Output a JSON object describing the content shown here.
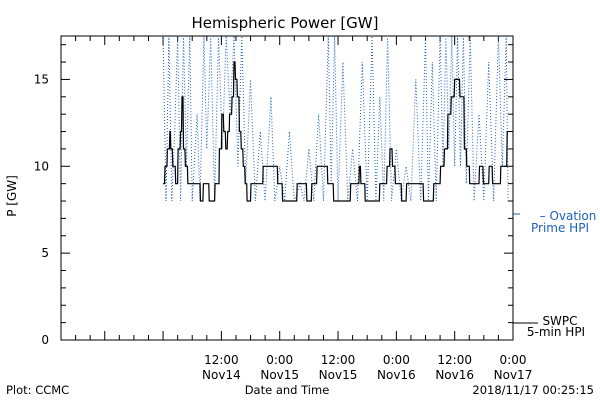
{
  "chart_data": {
    "type": "line",
    "title": "Hemispheric Power [GW]",
    "xlabel": "Date and Time",
    "ylabel": "P [GW]",
    "xlim_hours": [
      -21,
      72
    ],
    "ylim": [
      0,
      17.5
    ],
    "yticks": [
      0,
      5,
      10,
      15
    ],
    "xticks": [
      {
        "h": 12,
        "top": "12:00",
        "bottom": "Nov14"
      },
      {
        "h": 24,
        "top": "0:00",
        "bottom": "Nov15"
      },
      {
        "h": 36,
        "top": "12:00",
        "bottom": "Nov15"
      },
      {
        "h": 48,
        "top": "0:00",
        "bottom": "Nov16"
      },
      {
        "h": 60,
        "top": "12:00",
        "bottom": "Nov16"
      },
      {
        "h": 72,
        "top": "0:00",
        "bottom": "Nov17"
      }
    ],
    "series": [
      {
        "name": "SWPC 5-min HPI",
        "color": "#000000",
        "style": "solid",
        "points": [
          [
            0,
            9
          ],
          [
            0.3,
            9
          ],
          [
            0.4,
            10
          ],
          [
            0.8,
            10
          ],
          [
            0.9,
            11
          ],
          [
            1.3,
            11
          ],
          [
            1.4,
            12
          ],
          [
            1.5,
            12
          ],
          [
            1.6,
            11
          ],
          [
            1.9,
            11
          ],
          [
            2,
            10
          ],
          [
            2.5,
            10
          ],
          [
            2.6,
            9
          ],
          [
            3,
            9
          ],
          [
            3.1,
            11
          ],
          [
            3.5,
            11
          ],
          [
            3.6,
            12
          ],
          [
            3.8,
            12
          ],
          [
            3.9,
            14
          ],
          [
            4.1,
            14
          ],
          [
            4.2,
            11
          ],
          [
            4.5,
            11
          ],
          [
            4.6,
            10
          ],
          [
            5,
            10
          ],
          [
            5.1,
            9
          ],
          [
            7.6,
            9
          ],
          [
            7.7,
            8
          ],
          [
            8.2,
            8
          ],
          [
            8.3,
            9
          ],
          [
            9.4,
            9
          ],
          [
            9.5,
            8
          ],
          [
            10.6,
            8
          ],
          [
            10.7,
            9
          ],
          [
            11.5,
            9
          ],
          [
            11.6,
            11
          ],
          [
            12,
            11
          ],
          [
            12.1,
            13
          ],
          [
            12.4,
            13
          ],
          [
            12.5,
            12
          ],
          [
            12.8,
            12
          ],
          [
            12.9,
            11
          ],
          [
            13.2,
            11
          ],
          [
            13.3,
            12
          ],
          [
            13.6,
            12
          ],
          [
            13.7,
            13
          ],
          [
            14.1,
            13
          ],
          [
            14.2,
            14
          ],
          [
            14.5,
            14
          ],
          [
            14.6,
            16
          ],
          [
            14.8,
            16
          ],
          [
            14.9,
            15
          ],
          [
            15.2,
            15
          ],
          [
            15.3,
            14
          ],
          [
            15.6,
            14
          ],
          [
            15.7,
            12
          ],
          [
            16,
            12
          ],
          [
            16.1,
            11
          ],
          [
            16.4,
            11
          ],
          [
            16.5,
            10
          ],
          [
            16.8,
            10
          ],
          [
            16.9,
            9
          ],
          [
            17.2,
            9
          ],
          [
            17.3,
            8
          ],
          [
            18,
            8
          ],
          [
            18.1,
            9
          ],
          [
            20.5,
            9
          ],
          [
            20.6,
            10
          ],
          [
            23.5,
            10
          ],
          [
            23.6,
            9
          ],
          [
            24.5,
            9
          ],
          [
            24.6,
            8
          ],
          [
            27.5,
            8
          ],
          [
            27.6,
            9
          ],
          [
            29.5,
            9
          ],
          [
            29.6,
            8
          ],
          [
            30.5,
            8
          ],
          [
            30.6,
            9
          ],
          [
            31.6,
            9
          ],
          [
            31.7,
            10
          ],
          [
            33.8,
            10
          ],
          [
            33.9,
            9
          ],
          [
            35,
            9
          ],
          [
            35.1,
            8
          ],
          [
            38.5,
            8
          ],
          [
            38.6,
            9
          ],
          [
            40.3,
            9
          ],
          [
            40.4,
            10
          ],
          [
            40.6,
            10
          ],
          [
            40.7,
            9
          ],
          [
            41.5,
            9
          ],
          [
            41.6,
            8
          ],
          [
            44.5,
            8
          ],
          [
            44.6,
            9
          ],
          [
            46,
            9
          ],
          [
            46.1,
            10
          ],
          [
            46.6,
            10
          ],
          [
            46.7,
            11
          ],
          [
            47.1,
            11
          ],
          [
            47.2,
            10
          ],
          [
            47.7,
            10
          ],
          [
            47.8,
            9
          ],
          [
            49,
            9
          ],
          [
            49.1,
            8
          ],
          [
            50,
            8
          ],
          [
            50.1,
            9
          ],
          [
            53.5,
            9
          ],
          [
            53.6,
            8
          ],
          [
            55.6,
            8
          ],
          [
            55.7,
            9
          ],
          [
            57,
            9
          ],
          [
            57.1,
            10
          ],
          [
            57.8,
            10
          ],
          [
            57.9,
            11
          ],
          [
            58.5,
            11
          ],
          [
            58.6,
            13
          ],
          [
            59.2,
            13
          ],
          [
            59.3,
            14
          ],
          [
            59.9,
            14
          ],
          [
            60,
            15
          ],
          [
            61,
            15
          ],
          [
            61.1,
            14
          ],
          [
            61.9,
            14
          ],
          [
            62,
            11
          ],
          [
            62.4,
            11
          ],
          [
            62.5,
            10
          ],
          [
            63,
            10
          ],
          [
            63.1,
            9
          ],
          [
            65,
            9
          ],
          [
            65.1,
            10
          ],
          [
            65.8,
            10
          ],
          [
            65.9,
            9
          ],
          [
            67,
            9
          ],
          [
            67.1,
            10
          ],
          [
            67.7,
            10
          ],
          [
            67.8,
            9
          ],
          [
            69.4,
            9
          ],
          [
            69.5,
            10
          ],
          [
            70.7,
            10
          ],
          [
            70.8,
            12
          ],
          [
            71,
            12
          ]
        ]
      },
      {
        "name": "Ovation Prime HPI",
        "color": "#1f5fbf",
        "style": "dotted",
        "points": [
          [
            0,
            17.5
          ],
          [
            0.6,
            8
          ],
          [
            1.2,
            17.5
          ],
          [
            1.8,
            8
          ],
          [
            2.4,
            12
          ],
          [
            3,
            17.5
          ],
          [
            3.6,
            8
          ],
          [
            4.2,
            17.5
          ],
          [
            4.8,
            10
          ],
          [
            5.5,
            17.5
          ],
          [
            6,
            8
          ],
          [
            7,
            13
          ],
          [
            7.6,
            8
          ],
          [
            8.4,
            17.5
          ],
          [
            9,
            11
          ],
          [
            9.8,
            17.5
          ],
          [
            10.6,
            8
          ],
          [
            11.4,
            17.5
          ],
          [
            12.2,
            11
          ],
          [
            13,
            17.5
          ],
          [
            13.8,
            13
          ],
          [
            14.6,
            17.5
          ],
          [
            15.4,
            10
          ],
          [
            16.2,
            17.5
          ],
          [
            17,
            9
          ],
          [
            18,
            15
          ],
          [
            19,
            8
          ],
          [
            20,
            12
          ],
          [
            21,
            8
          ],
          [
            22.2,
            14
          ],
          [
            23,
            8
          ],
          [
            24,
            10
          ],
          [
            25,
            8
          ],
          [
            26,
            12
          ],
          [
            27,
            8
          ],
          [
            28.2,
            9
          ],
          [
            29,
            8
          ],
          [
            30,
            11
          ],
          [
            31,
            8
          ],
          [
            32,
            13
          ],
          [
            33,
            8
          ],
          [
            34,
            17.5
          ],
          [
            34.6,
            9
          ],
          [
            35.3,
            17.5
          ],
          [
            36,
            8
          ],
          [
            37,
            16
          ],
          [
            38,
            8
          ],
          [
            39,
            11
          ],
          [
            40,
            8
          ],
          [
            41,
            16
          ],
          [
            42,
            8
          ],
          [
            43,
            17.5
          ],
          [
            43.8,
            8
          ],
          [
            44.6,
            14
          ],
          [
            45.4,
            8
          ],
          [
            46.2,
            17.5
          ],
          [
            47,
            8
          ],
          [
            48,
            11
          ],
          [
            49,
            8
          ],
          [
            50,
            10
          ],
          [
            51,
            8
          ],
          [
            52,
            15
          ],
          [
            53,
            8
          ],
          [
            54,
            17.5
          ],
          [
            54.6,
            8
          ],
          [
            55.4,
            16
          ],
          [
            56.2,
            8
          ],
          [
            57,
            17.5
          ],
          [
            57.6,
            10
          ],
          [
            58.2,
            17.5
          ],
          [
            58.8,
            11
          ],
          [
            59.4,
            17.5
          ],
          [
            60,
            10
          ],
          [
            60.6,
            17.5
          ],
          [
            61.2,
            10
          ],
          [
            61.8,
            17.5
          ],
          [
            62.4,
            9
          ],
          [
            63.2,
            17.5
          ],
          [
            64,
            8
          ],
          [
            65,
            13
          ],
          [
            66,
            8
          ],
          [
            67,
            16
          ],
          [
            68,
            8
          ],
          [
            69,
            17.5
          ],
          [
            69.8,
            10
          ],
          [
            70.6,
            17.5
          ],
          [
            71,
            8
          ]
        ]
      }
    ],
    "legend": {
      "ovation": {
        "dash": "–",
        "line1": "Ovation",
        "line2": "Prime HPI"
      },
      "swpc": {
        "line1": "SWPC",
        "line2": "5-min HPI"
      }
    },
    "footer": {
      "left": "Plot: CCMC",
      "center": "Date and Time",
      "right": "2018/11/17 00:25:15"
    },
    "grid": false
  }
}
